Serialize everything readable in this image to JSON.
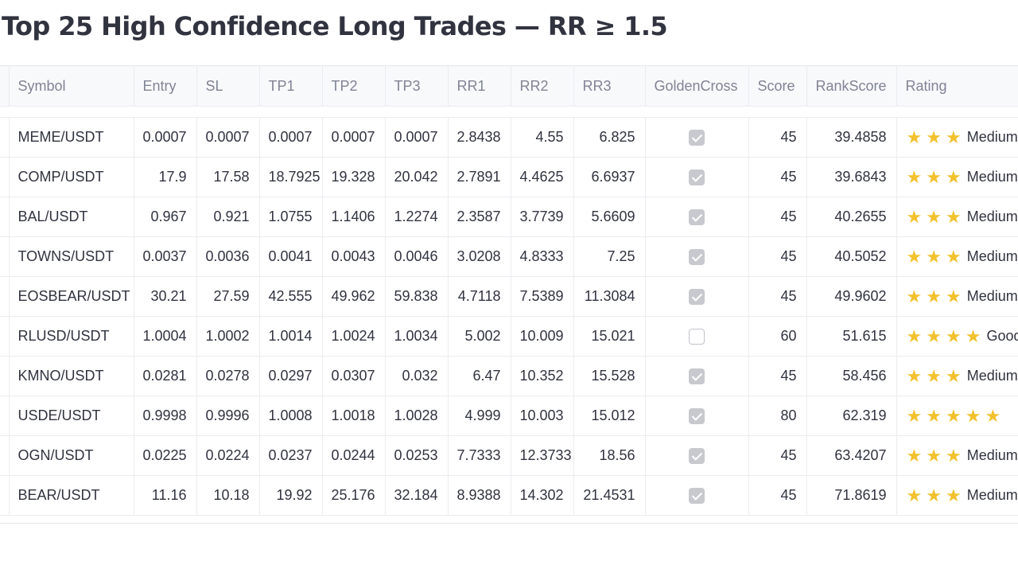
{
  "page": {
    "title": "Top 25 High Confidence Long Trades — RR ≥ 1.5"
  },
  "table": {
    "columns": [
      "",
      "Symbol",
      "Entry",
      "SL",
      "TP1",
      "TP2",
      "TP3",
      "RR1",
      "RR2",
      "RR3",
      "GoldenCross",
      "Score",
      "RankScore",
      "Rating"
    ],
    "rows": [
      {
        "symbol": "MEME/USDT",
        "entry": "0.0007",
        "sl": "0.0007",
        "tp1": "0.0007",
        "tp2": "0.0007",
        "tp3": "0.0007",
        "rr1": "2.8438",
        "rr2": "4.55",
        "rr3": "6.825",
        "golden_cross": true,
        "score": "45",
        "rank_score": "39.4858",
        "stars": 3,
        "rating": "Medium"
      },
      {
        "symbol": "COMP/USDT",
        "entry": "17.9",
        "sl": "17.58",
        "tp1": "18.7925",
        "tp2": "19.328",
        "tp3": "20.042",
        "rr1": "2.7891",
        "rr2": "4.4625",
        "rr3": "6.6937",
        "golden_cross": true,
        "score": "45",
        "rank_score": "39.6843",
        "stars": 3,
        "rating": "Medium"
      },
      {
        "symbol": "BAL/USDT",
        "entry": "0.967",
        "sl": "0.921",
        "tp1": "1.0755",
        "tp2": "1.1406",
        "tp3": "1.2274",
        "rr1": "2.3587",
        "rr2": "3.7739",
        "rr3": "5.6609",
        "golden_cross": true,
        "score": "45",
        "rank_score": "40.2655",
        "stars": 3,
        "rating": "Medium"
      },
      {
        "symbol": "TOWNS/USDT",
        "entry": "0.0037",
        "sl": "0.0036",
        "tp1": "0.0041",
        "tp2": "0.0043",
        "tp3": "0.0046",
        "rr1": "3.0208",
        "rr2": "4.8333",
        "rr3": "7.25",
        "golden_cross": true,
        "score": "45",
        "rank_score": "40.5052",
        "stars": 3,
        "rating": "Medium"
      },
      {
        "symbol": "EOSBEAR/USDT",
        "entry": "30.21",
        "sl": "27.59",
        "tp1": "42.555",
        "tp2": "49.962",
        "tp3": "59.838",
        "rr1": "4.7118",
        "rr2": "7.5389",
        "rr3": "11.3084",
        "golden_cross": true,
        "score": "45",
        "rank_score": "49.9602",
        "stars": 3,
        "rating": "Medium"
      },
      {
        "symbol": "RLUSD/USDT",
        "entry": "1.0004",
        "sl": "1.0002",
        "tp1": "1.0014",
        "tp2": "1.0024",
        "tp3": "1.0034",
        "rr1": "5.002",
        "rr2": "10.009",
        "rr3": "15.021",
        "golden_cross": false,
        "score": "60",
        "rank_score": "51.615",
        "stars": 4,
        "rating": "Good"
      },
      {
        "symbol": "KMNO/USDT",
        "entry": "0.0281",
        "sl": "0.0278",
        "tp1": "0.0297",
        "tp2": "0.0307",
        "tp3": "0.032",
        "rr1": "6.47",
        "rr2": "10.352",
        "rr3": "15.528",
        "golden_cross": true,
        "score": "45",
        "rank_score": "58.456",
        "stars": 3,
        "rating": "Medium"
      },
      {
        "symbol": "USDE/USDT",
        "entry": "0.9998",
        "sl": "0.9996",
        "tp1": "1.0008",
        "tp2": "1.0018",
        "tp3": "1.0028",
        "rr1": "4.999",
        "rr2": "10.003",
        "rr3": "15.012",
        "golden_cross": true,
        "score": "80",
        "rank_score": "62.319",
        "stars": 5,
        "rating": ""
      },
      {
        "symbol": "OGN/USDT",
        "entry": "0.0225",
        "sl": "0.0224",
        "tp1": "0.0237",
        "tp2": "0.0244",
        "tp3": "0.0253",
        "rr1": "7.7333",
        "rr2": "12.3733",
        "rr3": "18.56",
        "golden_cross": true,
        "score": "45",
        "rank_score": "63.4207",
        "stars": 3,
        "rating": "Medium"
      },
      {
        "symbol": "BEAR/USDT",
        "entry": "11.16",
        "sl": "10.18",
        "tp1": "19.92",
        "tp2": "25.176",
        "tp3": "32.184",
        "rr1": "8.9388",
        "rr2": "14.302",
        "rr3": "21.4531",
        "golden_cross": true,
        "score": "45",
        "rank_score": "71.8619",
        "stars": 3,
        "rating": "Medium"
      }
    ]
  },
  "colors": {
    "star": "#f2c12e",
    "header_bg": "#f8f9fb",
    "checkbox_checked": "#c8c9ce"
  },
  "icons": {
    "rating": "star-icon",
    "golden_cross": "checkbox-icon"
  }
}
